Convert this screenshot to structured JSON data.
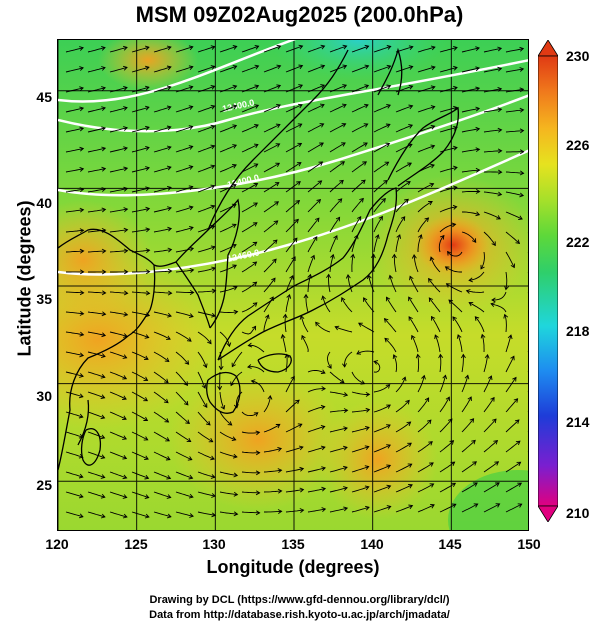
{
  "title": "MSM 09Z02Aug2025 (200.0hPa)",
  "x_axis": {
    "title": "Longitude (degrees)",
    "ticks": [
      "120",
      "125",
      "130",
      "135",
      "140",
      "145",
      "150"
    ],
    "range": [
      120,
      150
    ]
  },
  "y_axis": {
    "title": "Latitude  (degrees)",
    "ticks": [
      "25",
      "30",
      "35",
      "40",
      "45"
    ],
    "range": [
      22.4,
      47.6
    ]
  },
  "colorbar": {
    "labels": [
      "230",
      "226",
      "222",
      "218",
      "214",
      "210"
    ],
    "min": 210,
    "max": 230,
    "colors": [
      "#e0007f",
      "#7a1fd0",
      "#1e3cd8",
      "#1e8cf0",
      "#1fd6dc",
      "#2fcf6a",
      "#5dd83a",
      "#a6e02a",
      "#e6e21f",
      "#f5b51f",
      "#f07a1c",
      "#e03a14"
    ]
  },
  "contour_labels": [
    "12400.0",
    "12400.0",
    "12460.0"
  ],
  "credits": {
    "line1": "Drawing by DCL (https://www.gfd-dennou.org/library/dcl/)",
    "line2": "Data from http://database.rish.kyoto-u.ac.jp/arch/jmadata/"
  }
}
